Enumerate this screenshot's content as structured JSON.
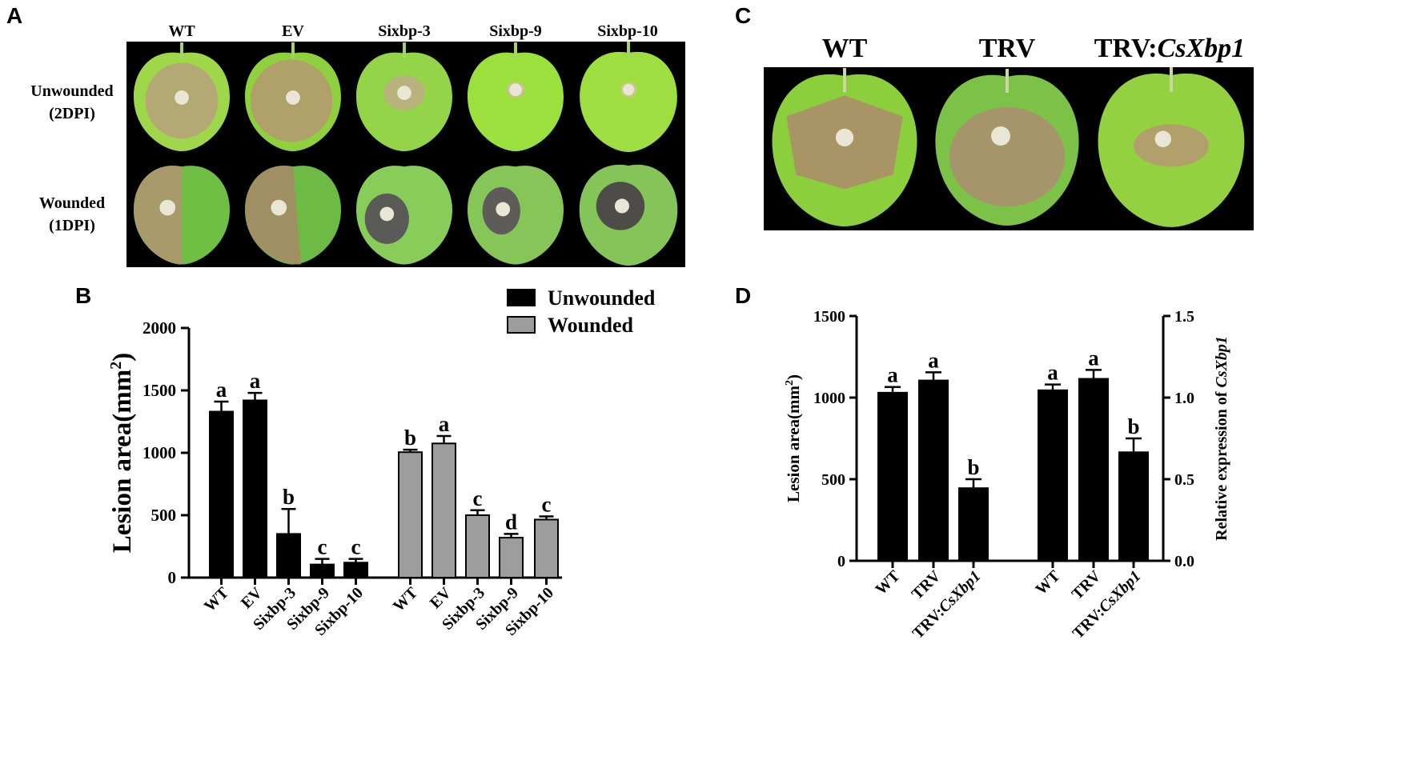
{
  "panel_a": {
    "letter": "A",
    "column_labels": [
      "WT",
      "EV",
      "Sixbp-3",
      "Sixbp-9",
      "Sixbp-10"
    ],
    "row_labels": [
      {
        "line1": "Unwounded",
        "line2": "(2DPI)"
      },
      {
        "line1": "Wounded",
        "line2": "(1DPI)"
      }
    ]
  },
  "panel_c": {
    "letter": "C",
    "column_labels": [
      {
        "main": "WT",
        "italic": ""
      },
      {
        "main": "TRV",
        "italic": ""
      },
      {
        "main": "TRV:",
        "italic": "CsXbp1"
      }
    ]
  },
  "panel_b": {
    "letter": "B"
  },
  "panel_d": {
    "letter": "D"
  },
  "colors": {
    "black_bar": "#000000",
    "gray_bar": "#9d9d9d",
    "leaf_green": "#8ccf3c",
    "lesion_tan": "#b8a66a"
  },
  "chart_data": [
    {
      "type": "bar",
      "panel": "B",
      "ylabel": "Lesion area(mm2)",
      "ylim": [
        0,
        2000
      ],
      "yticks": [
        0,
        500,
        1000,
        1500,
        2000
      ],
      "categories": [
        "WT",
        "EV",
        "Sixbp-3",
        "Sixbp-9",
        "Sixbp-10"
      ],
      "legend": {
        "position": "top-right"
      },
      "series": [
        {
          "name": "Unwounded",
          "color": "#000000",
          "values": [
            1330,
            1420,
            350,
            105,
            120
          ],
          "errors": [
            80,
            60,
            200,
            45,
            30
          ],
          "letters": [
            "a",
            "a",
            "b",
            "c",
            "c"
          ]
        },
        {
          "name": "Wounded",
          "color": "#9d9d9d",
          "values": [
            1005,
            1075,
            500,
            320,
            465
          ],
          "errors": [
            20,
            60,
            40,
            30,
            25
          ],
          "letters": [
            "b",
            "a",
            "c",
            "d",
            "c"
          ]
        }
      ]
    },
    {
      "type": "bar",
      "panel": "D",
      "ylabel_left": "Lesion area(mm2)",
      "ylabel_right": "Relative expression of CsXbp1",
      "ylim_left": [
        0,
        1500
      ],
      "yticks_left": [
        0,
        500,
        1000,
        1500
      ],
      "ylim_right": [
        0,
        1.5
      ],
      "yticks_right": [
        "0.0",
        "0.5",
        "1.0",
        "1.5"
      ],
      "categories": [
        {
          "main": "WT",
          "italic": ""
        },
        {
          "main": "TRV",
          "italic": ""
        },
        {
          "main": "TRV:",
          "italic": "CsXbp1"
        }
      ],
      "groups": [
        {
          "axis": "left",
          "values": [
            1035,
            1110,
            450
          ],
          "errors": [
            30,
            45,
            50
          ],
          "letters": [
            "a",
            "a",
            "b"
          ]
        },
        {
          "axis": "right",
          "values": [
            1.05,
            1.12,
            0.67
          ],
          "errors": [
            0.03,
            0.05,
            0.08
          ],
          "letters": [
            "a",
            "a",
            "b"
          ]
        }
      ]
    }
  ]
}
